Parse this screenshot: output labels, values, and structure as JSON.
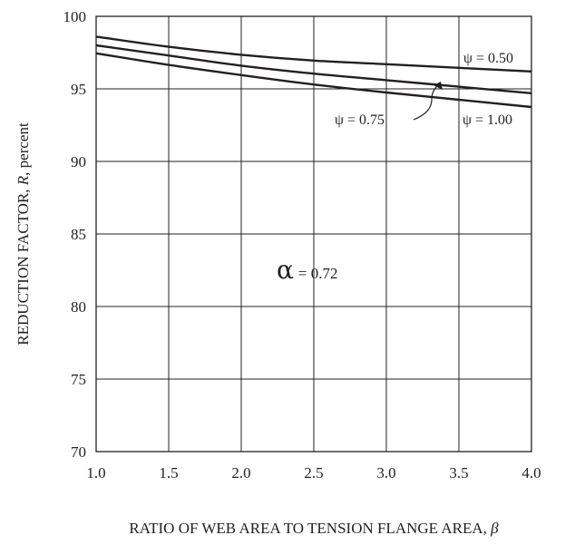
{
  "chart_data": {
    "type": "line",
    "xlabel_main": "RATIO OF WEB AREA TO TENSION FLANGE AREA, ",
    "xlabel_symbol": "β",
    "ylabel_main": "REDUCTION FACTOR, ",
    "ylabel_symbol": "R",
    "ylabel_suffix": ", percent",
    "xlim": [
      1.0,
      4.0
    ],
    "ylim": [
      70,
      100
    ],
    "xticks": [
      "1.0",
      "1.5",
      "2.0",
      "2.5",
      "3.0",
      "3.5",
      "4.0"
    ],
    "yticks": [
      "70",
      "75",
      "80",
      "85",
      "90",
      "95",
      "100"
    ],
    "grid": true,
    "series": [
      {
        "name": "ψ = 0.50",
        "x": [
          1.0,
          1.5,
          2.0,
          2.5,
          3.0,
          3.5,
          4.0
        ],
        "y": [
          98.6,
          97.9,
          97.35,
          96.95,
          96.7,
          96.45,
          96.2
        ]
      },
      {
        "name": "ψ = 0.75",
        "x": [
          1.0,
          1.5,
          2.0,
          2.5,
          3.0,
          3.5,
          4.0
        ],
        "y": [
          98.0,
          97.3,
          96.6,
          96.05,
          95.6,
          95.15,
          94.7
        ]
      },
      {
        "name": "ψ = 1.00",
        "x": [
          1.0,
          1.5,
          2.0,
          2.5,
          3.0,
          3.5,
          4.0
        ],
        "y": [
          97.45,
          96.65,
          95.95,
          95.3,
          94.75,
          94.25,
          93.75
        ]
      }
    ],
    "annotations": {
      "alpha_symbol": "α",
      "alpha_value": "= 0.72"
    }
  }
}
